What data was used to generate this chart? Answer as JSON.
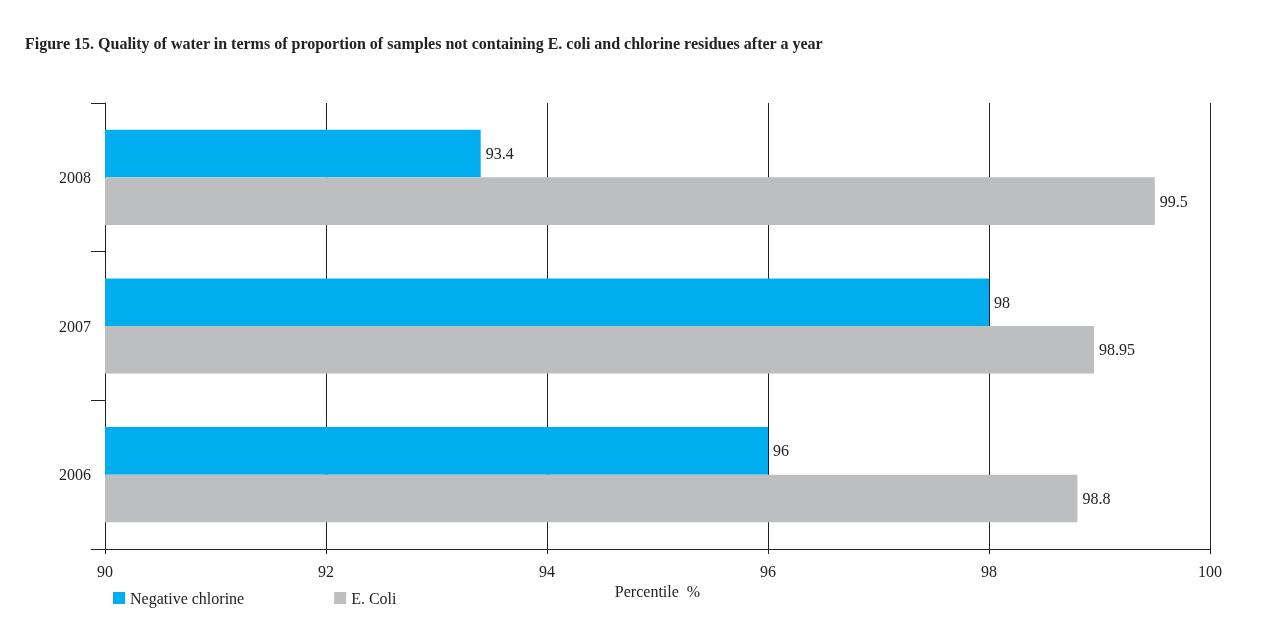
{
  "chart_data": {
    "type": "bar",
    "orientation": "horizontal",
    "title": "Figure 15. Quality of water in terms of proportion of samples not containing E. coli and chlorine residues after a year",
    "xlabel": "Percentile  %",
    "categories": [
      "2008",
      "2007",
      "2006"
    ],
    "series": [
      {
        "name": "Negative chlorine",
        "color": "#00aeef",
        "values": [
          93.4,
          98,
          96
        ]
      },
      {
        "name": "E. Coli",
        "color": "#bcbec0",
        "values": [
          99.5,
          98.95,
          98.8
        ]
      }
    ],
    "xlim": [
      90,
      100
    ],
    "xticks": [
      90,
      92,
      94,
      96,
      98,
      100
    ],
    "grid": "x",
    "legend": "bottom left",
    "data_labels": true
  }
}
